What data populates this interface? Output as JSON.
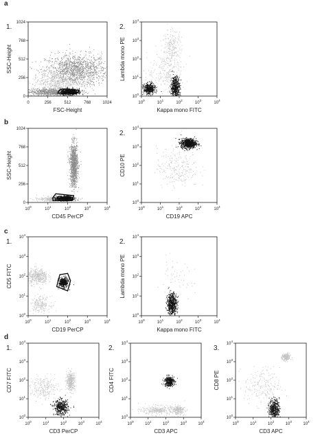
{
  "colors": {
    "ink": "#1a1a1a",
    "dots_dark": "#111111",
    "dots_gray": "#8c8c8c",
    "dots_light": "#c4c4c4",
    "gate": "#000000"
  },
  "sections": [
    "a",
    "b",
    "c",
    "d"
  ],
  "chart_data": [
    {
      "type": "scatter",
      "section": "a",
      "number": "1.",
      "xlabel": "FSC-Height",
      "ylabel": "SSC-Height",
      "xscale": "linear",
      "yscale": "linear",
      "xlim": [
        0,
        1024
      ],
      "ylim": [
        0,
        1024
      ],
      "xticks": [
        "0",
        "256",
        "512",
        "768",
        "1024"
      ],
      "yticks": [
        "0",
        "256",
        "512",
        "768",
        "1024"
      ],
      "populations": [
        {
          "cx": 620,
          "cy": 360,
          "sx": 200,
          "sy": 110,
          "n": 1300,
          "shade": "gray"
        },
        {
          "cx": 380,
          "cy": 200,
          "sx": 160,
          "sy": 90,
          "n": 500,
          "shade": "light"
        },
        {
          "cx": 300,
          "cy": 60,
          "sx": 170,
          "sy": 25,
          "n": 700,
          "shade": "gray"
        },
        {
          "cx": 530,
          "cy": 62,
          "sx": 55,
          "sy": 20,
          "n": 650,
          "shade": "dark"
        }
      ],
      "gate": [
        [
          395,
          40
        ],
        [
          630,
          40
        ],
        [
          660,
          80
        ],
        [
          440,
          100
        ],
        [
          395,
          75
        ]
      ]
    },
    {
      "type": "scatter",
      "section": "a",
      "number": "2.",
      "xlabel": "Kappa mono FITC",
      "ylabel": "Lambda mono PE",
      "xscale": "log",
      "yscale": "log",
      "xlim": [
        1,
        10000
      ],
      "ylim": [
        1,
        10000
      ],
      "xticks": [
        "10^0",
        "10^1",
        "10^2",
        "10^3",
        "10^4"
      ],
      "yticks": [
        "10^0",
        "10^1",
        "10^2",
        "10^3",
        "10^4"
      ],
      "populations": [
        {
          "cx": 2.5,
          "cy": 2.5,
          "sx": 0.15,
          "sy": 0.15,
          "n": 450,
          "shade": "dark"
        },
        {
          "cx": 60,
          "cy": 3,
          "sx": 0.12,
          "sy": 0.3,
          "n": 550,
          "shade": "dark"
        },
        {
          "cx": 40,
          "cy": 400,
          "sx": 0.25,
          "sy": 0.5,
          "n": 220,
          "shade": "light"
        },
        {
          "cx": 20,
          "cy": 20,
          "sx": 0.5,
          "sy": 0.5,
          "n": 220,
          "shade": "light"
        }
      ],
      "gate": null
    },
    {
      "type": "scatter",
      "section": "b",
      "number": "",
      "xlabel": "CD45 PerCP",
      "ylabel": "SSC-Height",
      "xscale": "log",
      "yscale": "linear",
      "xlim": [
        1,
        10000
      ],
      "ylim": [
        0,
        1024
      ],
      "xticks": [
        "10^0",
        "10^1",
        "10^2",
        "10^3",
        "10^4"
      ],
      "yticks": [
        "0",
        "256",
        "512",
        "768",
        "1024"
      ],
      "populations": [
        {
          "cx": 200,
          "cy": 520,
          "sx": 0.1,
          "sy": 150,
          "n": 1000,
          "shade": "gray"
        },
        {
          "cx": 30,
          "cy": 50,
          "sx": 0.45,
          "sy": 18,
          "n": 500,
          "shade": "light"
        },
        {
          "cx": 70,
          "cy": 60,
          "sx": 0.22,
          "sy": 16,
          "n": 600,
          "shade": "dark"
        }
      ],
      "gate": [
        [
          18,
          25
        ],
        [
          170,
          25
        ],
        [
          200,
          95
        ],
        [
          25,
          120
        ],
        [
          18,
          70
        ]
      ]
    },
    {
      "type": "scatter",
      "section": "b",
      "number": "2.",
      "xlabel": "CD19 APC",
      "ylabel": "CD10 PE",
      "xscale": "log",
      "yscale": "log",
      "xlim": [
        1,
        10000
      ],
      "ylim": [
        1,
        10000
      ],
      "xticks": [
        "10^0",
        "10^1",
        "10^2",
        "10^3",
        "10^4"
      ],
      "yticks": [
        "10^0",
        "10^1",
        "10^2",
        "10^3",
        "10^4"
      ],
      "populations": [
        {
          "cx": 300,
          "cy": 1600,
          "sx": 0.2,
          "sy": 0.13,
          "n": 800,
          "shade": "dark"
        },
        {
          "cx": 80,
          "cy": 80,
          "sx": 0.55,
          "sy": 0.55,
          "n": 250,
          "shade": "light"
        }
      ],
      "gate": null
    },
    {
      "type": "scatter",
      "section": "c",
      "number": "1.",
      "xlabel": "CD19 PerCP",
      "ylabel": "CD5 FITC",
      "xscale": "log",
      "yscale": "log",
      "xlim": [
        1,
        10000
      ],
      "ylim": [
        1,
        10000
      ],
      "xticks": [
        "10^0",
        "10^1",
        "10^2",
        "10^3",
        "10^4"
      ],
      "yticks": [
        "10^0",
        "10^1",
        "10^2",
        "10^3",
        "10^4"
      ],
      "populations": [
        {
          "cx": 3,
          "cy": 100,
          "sx": 0.25,
          "sy": 0.2,
          "n": 400,
          "shade": "light"
        },
        {
          "cx": 4,
          "cy": 4,
          "sx": 0.25,
          "sy": 0.2,
          "n": 200,
          "shade": "light"
        },
        {
          "cx": 60,
          "cy": 50,
          "sx": 0.12,
          "sy": 0.12,
          "n": 420,
          "shade": "dark"
        }
      ],
      "gate": [
        [
          28,
          30
        ],
        [
          100,
          18
        ],
        [
          140,
          60
        ],
        [
          100,
          140
        ],
        [
          40,
          120
        ]
      ]
    },
    {
      "type": "scatter",
      "section": "c",
      "number": "2.",
      "xlabel": "Kappa mono FITC",
      "ylabel": "Lambda mono PE",
      "xscale": "log",
      "yscale": "log",
      "xlim": [
        1,
        10000
      ],
      "ylim": [
        1,
        10000
      ],
      "xticks": [
        "10^0",
        "10^1",
        "10^2",
        "10^3",
        "10^4"
      ],
      "yticks": [
        "10^0",
        "10^1",
        "10^2",
        "10^3",
        "10^4"
      ],
      "populations": [
        {
          "cx": 40,
          "cy": 4,
          "sx": 0.13,
          "sy": 0.28,
          "n": 600,
          "shade": "dark"
        },
        {
          "cx": 60,
          "cy": 60,
          "sx": 0.5,
          "sy": 0.5,
          "n": 60,
          "shade": "light"
        }
      ],
      "gate": null
    },
    {
      "type": "scatter",
      "section": "d",
      "number": "1.",
      "xlabel": "CD3 PerCP",
      "ylabel": "CD7 FITC",
      "xscale": "log",
      "yscale": "log",
      "xlim": [
        1,
        10000
      ],
      "ylim": [
        1,
        10000
      ],
      "xticks": [
        "10^0",
        "10^1",
        "10^2",
        "10^3",
        "10^4"
      ],
      "yticks": [
        "10^0",
        "10^1",
        "10^2",
        "10^3",
        "10^4"
      ],
      "populations": [
        {
          "cx": 250,
          "cy": 90,
          "sx": 0.12,
          "sy": 0.25,
          "n": 380,
          "shade": "light"
        },
        {
          "cx": 70,
          "cy": 3.5,
          "sx": 0.2,
          "sy": 0.2,
          "n": 450,
          "shade": "dark"
        },
        {
          "cx": 8,
          "cy": 40,
          "sx": 0.4,
          "sy": 0.3,
          "n": 220,
          "shade": "light"
        }
      ],
      "gate": null
    },
    {
      "type": "scatter",
      "section": "d",
      "number": "2.",
      "xlabel": "CD3 APC",
      "ylabel": "CD4 FITC",
      "xscale": "log",
      "yscale": "log",
      "xlim": [
        1,
        10000
      ],
      "ylim": [
        1,
        10000
      ],
      "xticks": [
        "10^0",
        "10^1",
        "10^2",
        "10^3",
        "10^4"
      ],
      "yticks": [
        "10^0",
        "10^1",
        "10^2",
        "10^3",
        "10^4"
      ],
      "populations": [
        {
          "cx": 150,
          "cy": 90,
          "sx": 0.14,
          "sy": 0.14,
          "n": 350,
          "shade": "dark"
        },
        {
          "cx": 40,
          "cy": 2.5,
          "sx": 0.5,
          "sy": 0.12,
          "n": 300,
          "shade": "light"
        },
        {
          "cx": 500,
          "cy": 2.5,
          "sx": 0.18,
          "sy": 0.12,
          "n": 200,
          "shade": "light"
        }
      ],
      "gate": null
    },
    {
      "type": "scatter",
      "section": "d",
      "number": "3.",
      "xlabel": "CD3 APC",
      "ylabel": "CD8 PE",
      "xscale": "log",
      "yscale": "log",
      "xlim": [
        1,
        10000
      ],
      "ylim": [
        1,
        10000
      ],
      "xticks": [
        "10^0",
        "10^1",
        "10^2",
        "10^3",
        "10^4"
      ],
      "yticks": [
        "10^0",
        "10^1",
        "10^2",
        "10^3",
        "10^4"
      ],
      "populations": [
        {
          "cx": 150,
          "cy": 3,
          "sx": 0.14,
          "sy": 0.25,
          "n": 450,
          "shade": "dark"
        },
        {
          "cx": 700,
          "cy": 1800,
          "sx": 0.12,
          "sy": 0.1,
          "n": 200,
          "shade": "light"
        },
        {
          "cx": 30,
          "cy": 50,
          "sx": 0.5,
          "sy": 0.5,
          "n": 200,
          "shade": "light"
        }
      ],
      "gate": null
    }
  ]
}
